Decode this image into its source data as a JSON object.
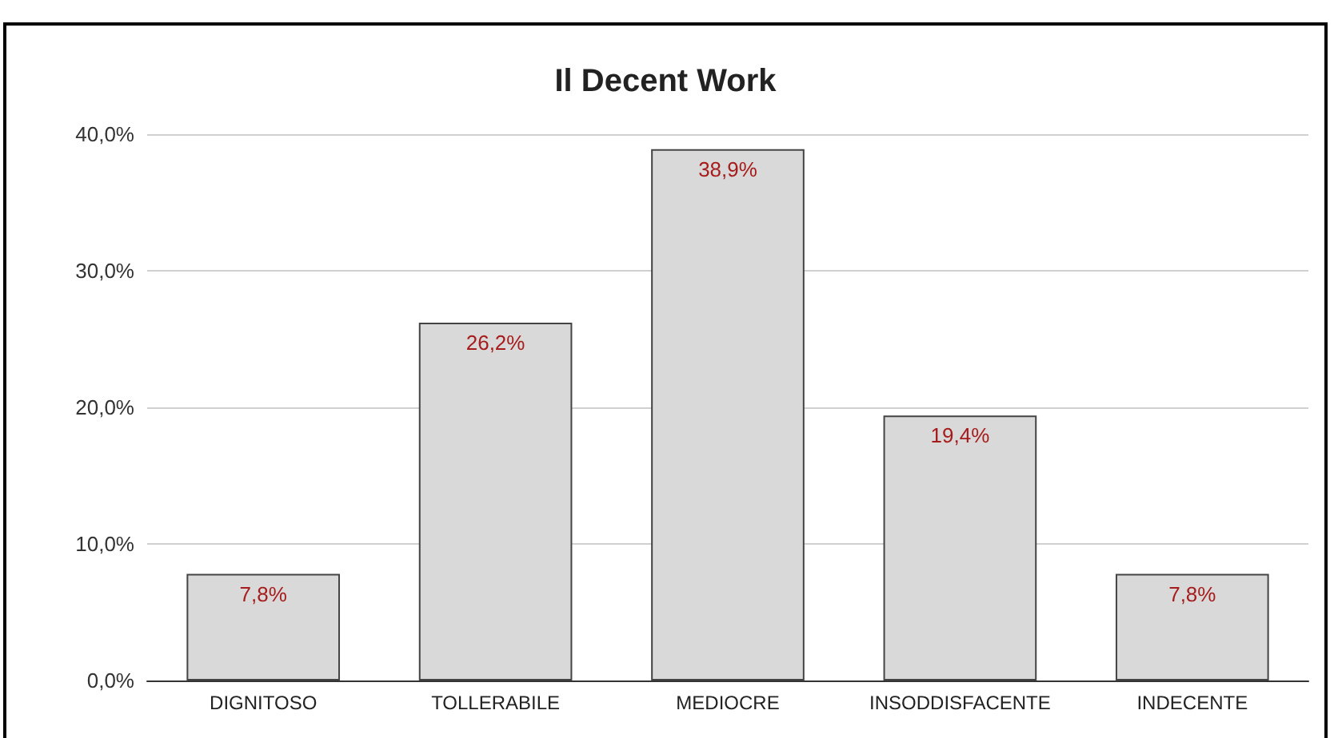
{
  "chart_data": {
    "type": "bar",
    "title": "Il Decent Work",
    "categories": [
      "DIGNITOSO",
      "TOLLERABILE",
      "MEDIOCRE",
      "INSODDISFACENTE",
      "INDECENTE"
    ],
    "values": [
      7.8,
      26.2,
      38.9,
      19.4,
      7.8
    ],
    "value_labels": [
      "7,8%",
      "26,2%",
      "38,9%",
      "19,4%",
      "7,8%"
    ],
    "color": "#d9d9d9",
    "ylim": [
      0,
      40
    ],
    "yticks": [
      {
        "value": 0,
        "label": "0,0%"
      },
      {
        "value": 10,
        "label": "10,0%"
      },
      {
        "value": 20,
        "label": "20,0%"
      },
      {
        "value": 30,
        "label": "30,0%"
      },
      {
        "value": 40,
        "label": "40,0%"
      }
    ],
    "grid": "y"
  }
}
